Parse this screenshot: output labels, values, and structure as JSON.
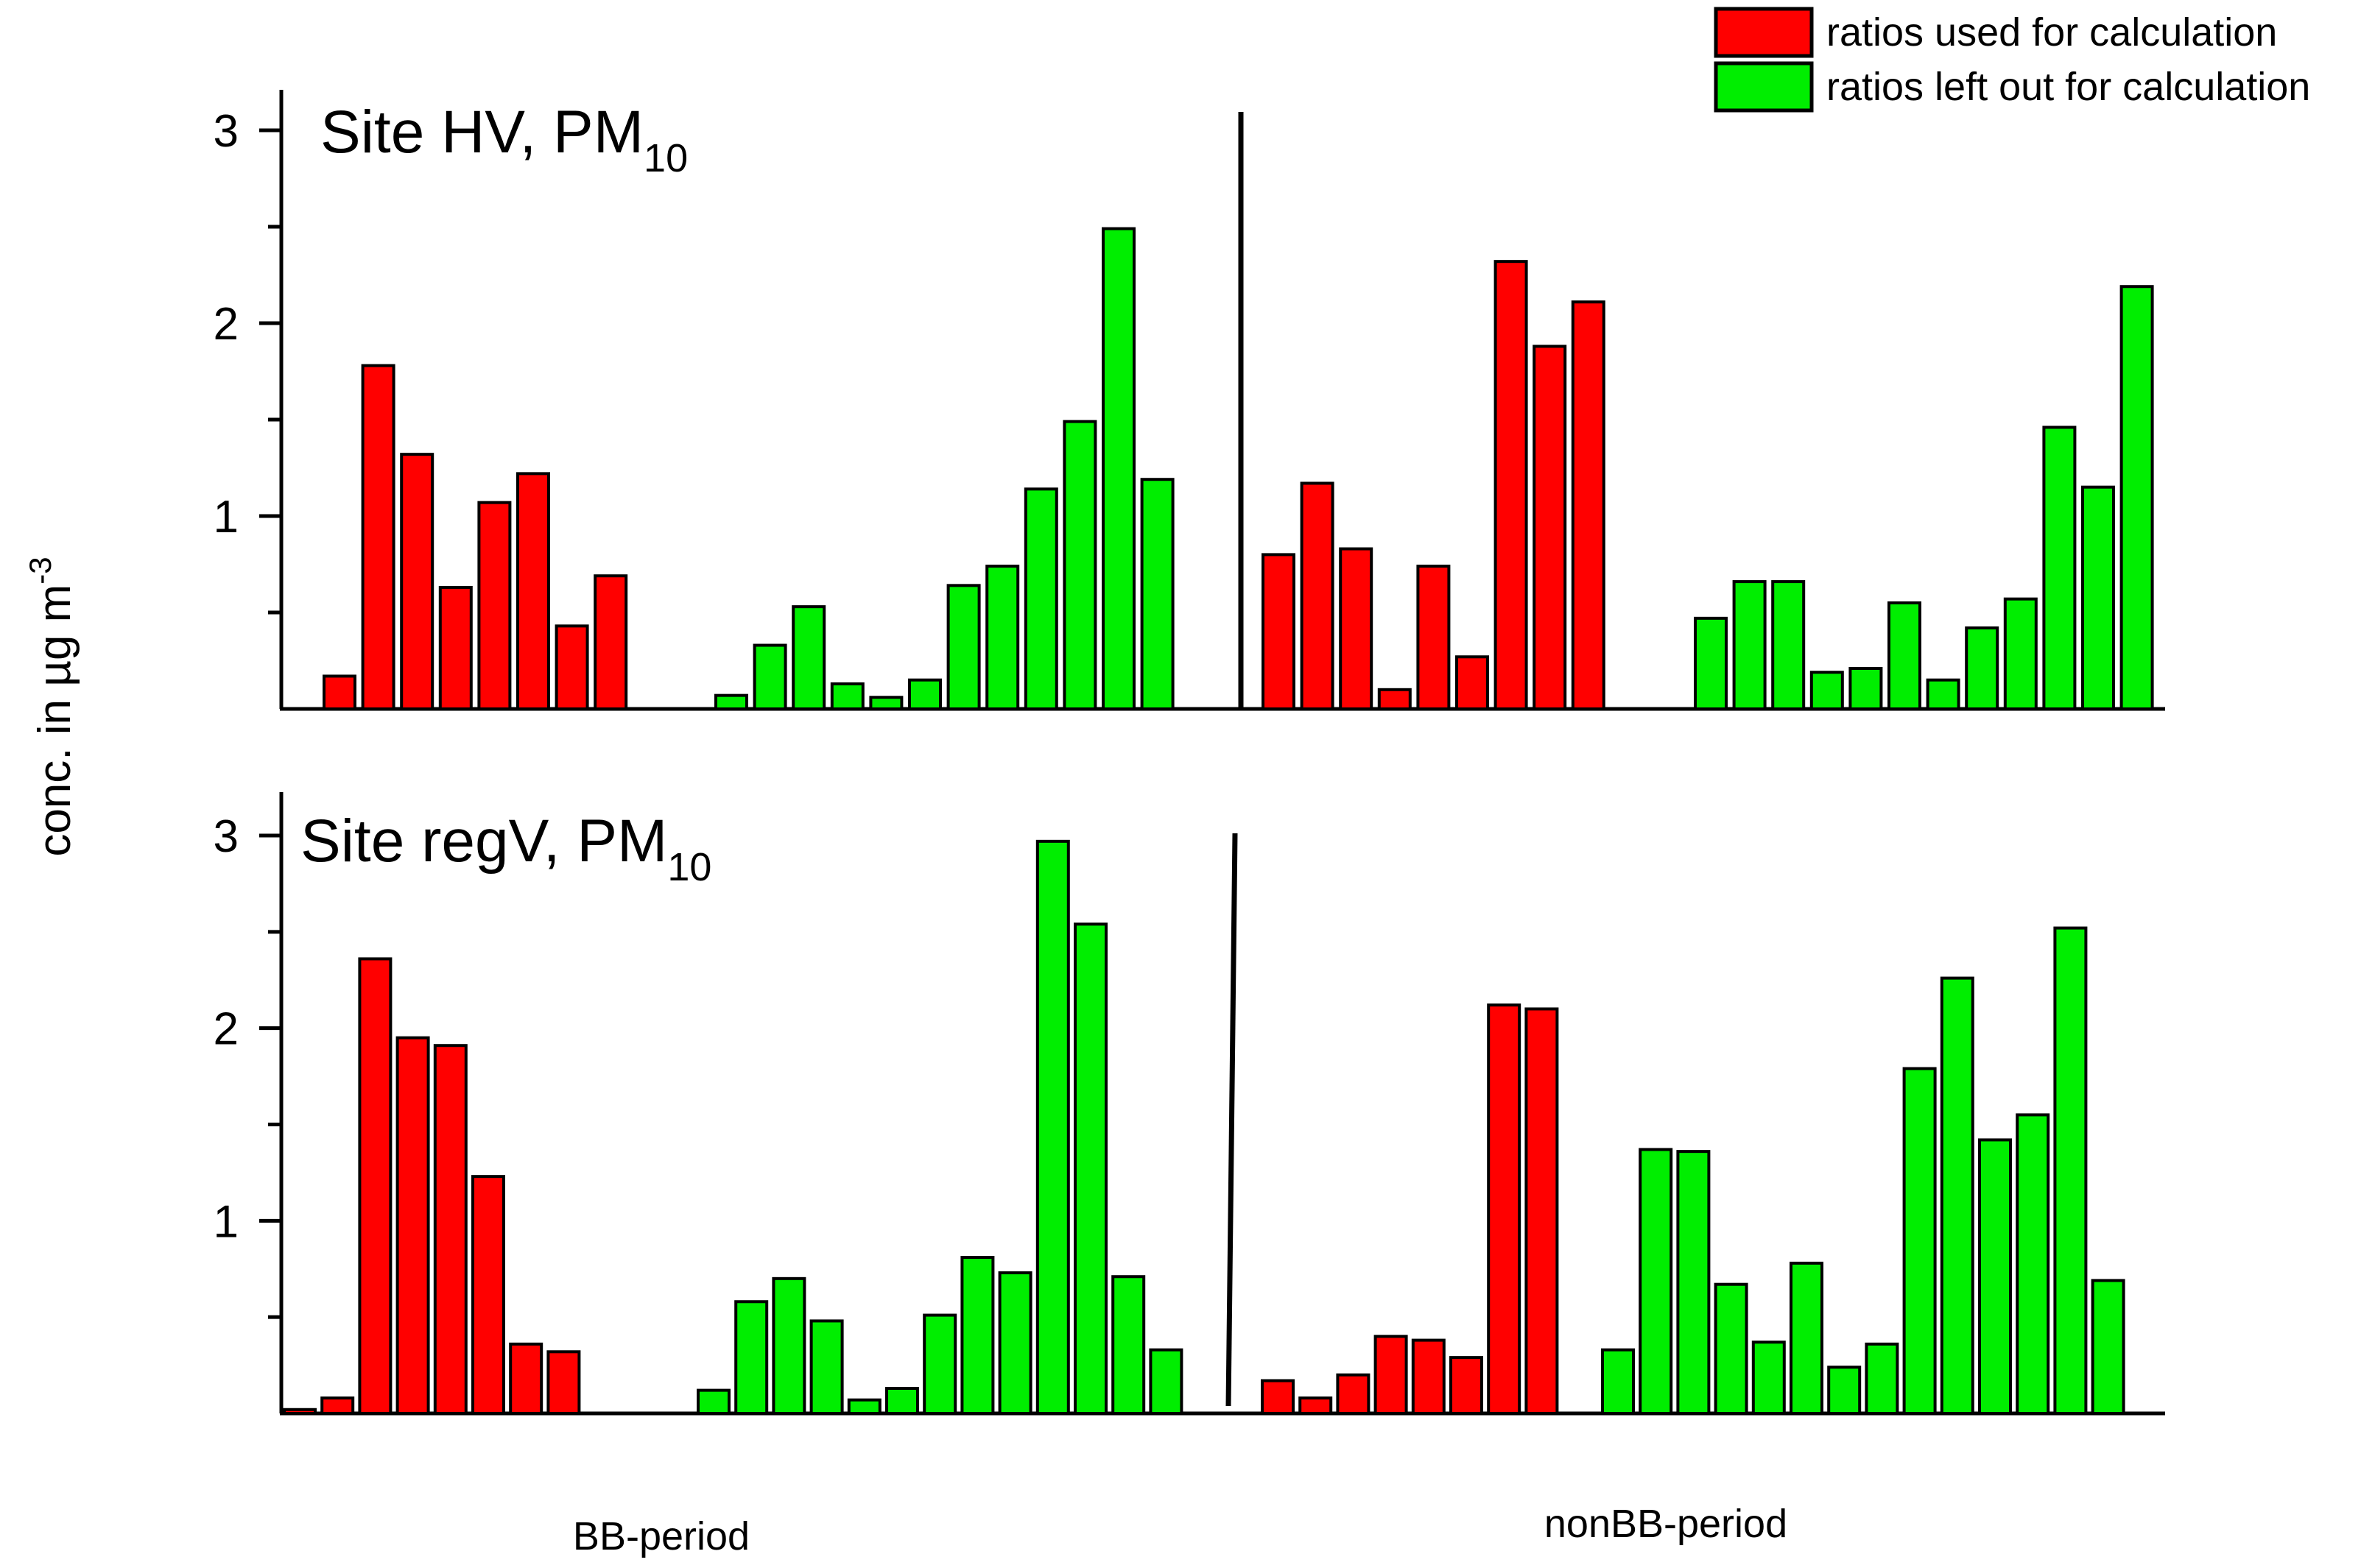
{
  "colors": {
    "used": "#ff0000",
    "left_out": "#00ee00"
  },
  "chart_data": {
    "type": "bar",
    "ylabel": "conc. in µg m",
    "ylabel_sup": "-3",
    "legend": {
      "placement": "top-right",
      "entries": [
        {
          "key": "used",
          "label": "ratios used for calculation"
        },
        {
          "key": "left_out",
          "label": "ratios left out for calculation"
        }
      ]
    },
    "period_labels": [
      "BB-period",
      "nonBB-period"
    ],
    "panels": [
      {
        "title": "Site HV, PM",
        "title_sub": "10",
        "ylim": [
          0,
          3.2
        ],
        "yticks": [
          "1",
          "2",
          "3"
        ],
        "series": [
          {
            "period": "BB-period",
            "group": "used",
            "values": [
              0.17,
              1.78,
              1.32,
              0.63,
              1.07,
              1.22,
              0.43,
              0.69
            ]
          },
          {
            "period": "BB-period",
            "group": "left_out",
            "values": [
              0.07,
              0.33,
              0.53,
              0.13,
              0.06,
              0.15,
              0.64,
              0.74,
              1.14,
              1.49,
              2.49,
              1.19
            ]
          },
          {
            "period": "nonBB-period",
            "group": "used",
            "values": [
              0.8,
              1.17,
              0.83,
              0.1,
              0.74,
              0.27,
              2.32,
              1.88,
              2.11
            ]
          },
          {
            "period": "nonBB-period",
            "group": "left_out",
            "values": [
              0.47,
              0.66,
              0.66,
              0.19,
              0.21,
              0.55,
              0.15,
              0.42,
              0.57,
              1.46,
              1.15,
              2.19
            ]
          }
        ]
      },
      {
        "title": "Site regV, PM",
        "title_sub": "10",
        "ylim": [
          0,
          3.2
        ],
        "yticks": [
          "1",
          "2",
          "3"
        ],
        "series": [
          {
            "period": "BB-period",
            "group": "used",
            "values": [
              0.02,
              0.08,
              2.36,
              1.95,
              1.91,
              1.23,
              0.36,
              0.32
            ]
          },
          {
            "period": "BB-period",
            "group": "left_out",
            "values": [
              0.12,
              0.58,
              0.7,
              0.48,
              0.07,
              0.13,
              0.51,
              0.81,
              0.73,
              2.97,
              2.54,
              0.71,
              0.33
            ]
          },
          {
            "period": "nonBB-period",
            "group": "used",
            "values": [
              0.17,
              0.08,
              0.2,
              0.4,
              0.38,
              0.29,
              2.12,
              2.1
            ]
          },
          {
            "period": "nonBB-period",
            "group": "left_out",
            "values": [
              0.33,
              1.37,
              1.36,
              0.67,
              0.37,
              0.78,
              0.24,
              0.36,
              1.79,
              2.26,
              1.42,
              1.55,
              2.52,
              0.69
            ]
          }
        ]
      }
    ]
  }
}
